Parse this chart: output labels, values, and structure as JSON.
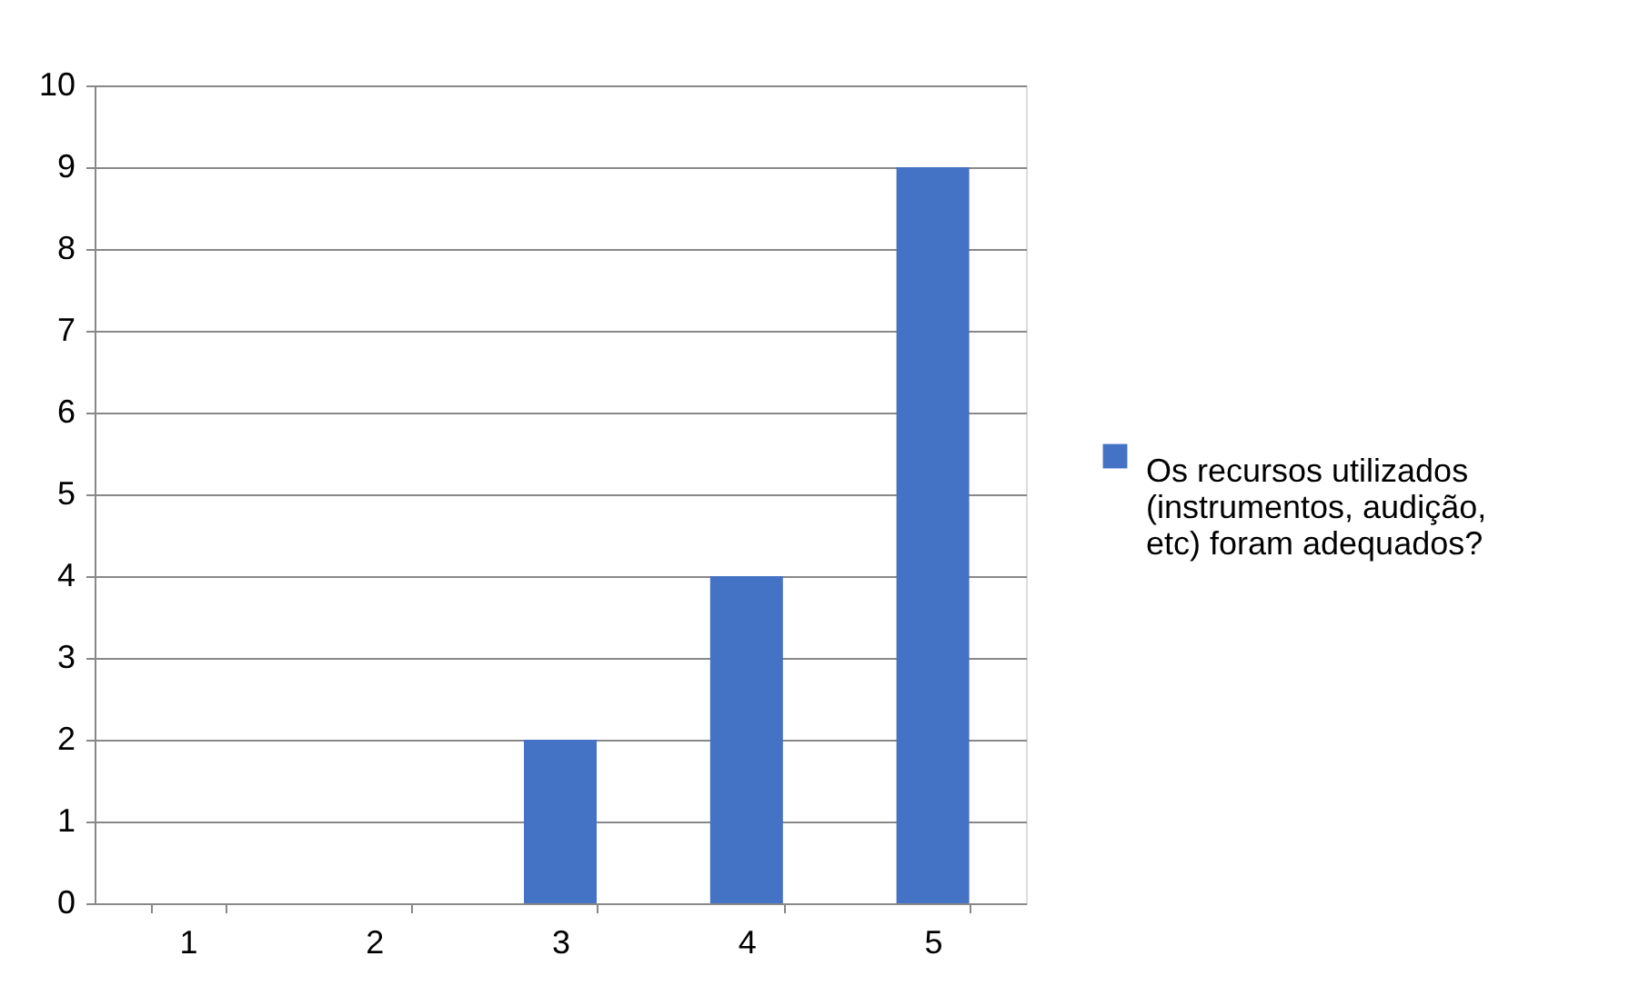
{
  "chart_data": {
    "type": "bar",
    "categories": [
      "1",
      "2",
      "3",
      "4",
      "5"
    ],
    "series": [
      {
        "name": "Os recursos utilizados (instrumentos, audição, etc) foram adequados?",
        "color": "#4472c4",
        "values": [
          0,
          0,
          2,
          4,
          9
        ]
      }
    ],
    "ylim": [
      0,
      10
    ],
    "yticks": [
      0,
      1,
      2,
      3,
      4,
      5,
      6,
      7,
      8,
      9,
      10
    ],
    "grid": "y",
    "legend": "right"
  }
}
